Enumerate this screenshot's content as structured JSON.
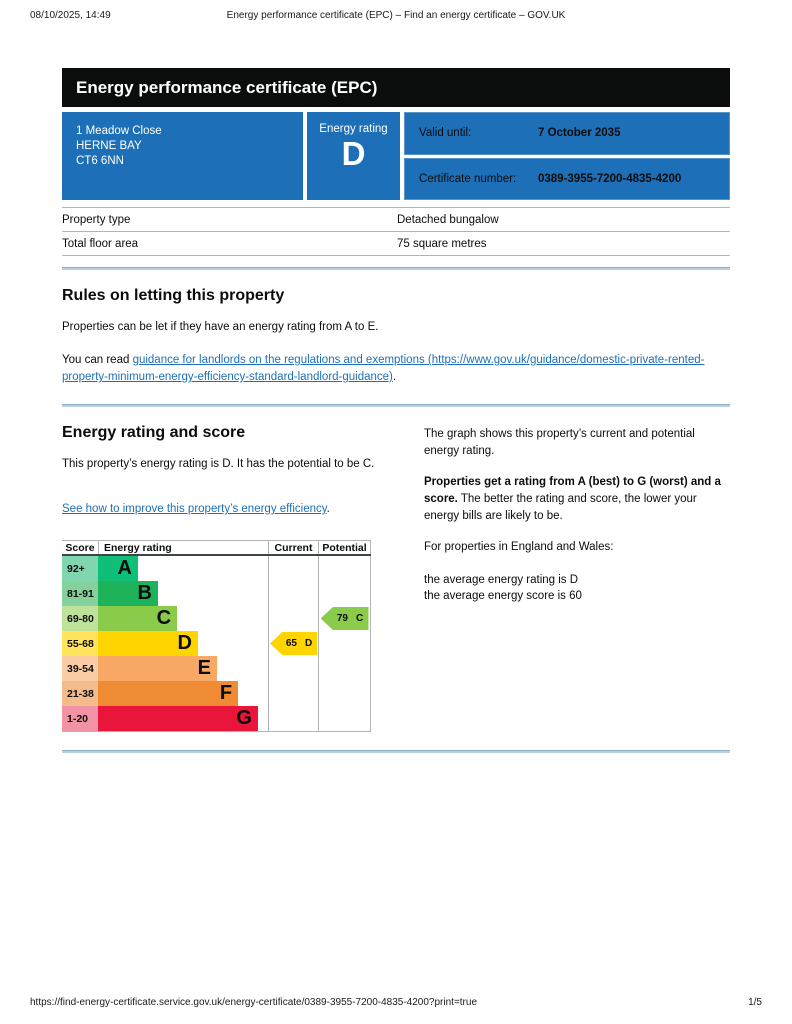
{
  "colors": {
    "govuk_blue": "#1d70b8",
    "banner_black": "#0b0c0c",
    "link_blue": "#1d70b8",
    "divider_blue": "#b9cfdf"
  },
  "print_header": {
    "datetime": "08/10/2025, 14:49",
    "title": "Energy performance certificate (EPC) – Find an energy certificate – GOV.UK"
  },
  "print_footer": {
    "url": "https://find-energy-certificate.service.gov.uk/energy-certificate/0389-3955-7200-4835-4200?print=true",
    "page_indicator": "1/5"
  },
  "banner": {
    "title": "Energy performance certificate (EPC)"
  },
  "summary": {
    "address_lines": [
      "1 Meadow Close",
      "HERNE BAY",
      "CT6 6NN"
    ],
    "energy_rating_label": "Energy rating",
    "energy_rating": "D",
    "valid_until_label": "Valid until:",
    "valid_until": "7 October 2035",
    "certificate_number_label": "Certificate number:",
    "certificate_number": "0389-3955-7200-4835-4200"
  },
  "property_details": {
    "rows": [
      {
        "label": "Property type",
        "value": "Detached bungalow"
      },
      {
        "label": "Total floor area",
        "value": "75 square metres"
      }
    ]
  },
  "letting_rules": {
    "heading": "Rules on letting this property",
    "paragraph1": "Properties can be let if they have an energy rating from A to E.",
    "paragraph2_prefix": "You can read ",
    "link_text": "guidance for landlords on the regulations and exemptions (https://www.gov.uk/guidance/domestic-private-rented-property-minimum-energy-efficiency-standard-landlord-guidance)",
    "paragraph2_suffix": "."
  },
  "rating_section": {
    "heading": "Energy rating and score",
    "paragraph1": "This property’s energy rating is D. It has the potential to be C.",
    "improve_link_text": "See how to improve this property’s energy efficiency",
    "improve_link_suffix": ".",
    "right": {
      "paragraph1": "The graph shows this property’s current and potential energy rating.",
      "paragraph2_bold": "Properties get a rating from A (best) to G (worst) and a score.",
      "paragraph2_rest": " The better the rating and score, the lower your energy bills are likely to be.",
      "paragraph3": "For properties in England and Wales:",
      "average_rating_line": "the average energy rating is D",
      "average_score_line": "the average energy score is 60"
    }
  },
  "chart_data": {
    "type": "bar",
    "title": "EPC energy rating bands with current and potential scores",
    "headers": {
      "score": "Score",
      "rating": "Energy rating",
      "current": "Current",
      "potential": "Potential"
    },
    "bands": [
      {
        "score_range": "92+",
        "letter": "A",
        "color": "#0fbe77",
        "tint": "#7fd6af",
        "width_pct": 23.5
      },
      {
        "score_range": "81-91",
        "letter": "B",
        "color": "#1eb25a",
        "tint": "#84d19c",
        "width_pct": 35.3
      },
      {
        "score_range": "69-80",
        "letter": "C",
        "color": "#8bcb4c",
        "tint": "#bfe29b",
        "width_pct": 46.5
      },
      {
        "score_range": "55-68",
        "letter": "D",
        "color": "#ffd500",
        "tint": "#ffe45c",
        "width_pct": 58.8
      },
      {
        "score_range": "39-54",
        "letter": "E",
        "color": "#f8a966",
        "tint": "#fbcda4",
        "width_pct": 70.0
      },
      {
        "score_range": "21-38",
        "letter": "F",
        "color": "#ee8b33",
        "tint": "#f4bc8d",
        "width_pct": 82.4
      },
      {
        "score_range": "1-20",
        "letter": "G",
        "color": "#e9153b",
        "tint": "#f193a5",
        "width_pct": 94.1
      }
    ],
    "current": {
      "score": 65,
      "letter": "D",
      "band_index": 3,
      "color": "#ffd500"
    },
    "potential": {
      "score": 79,
      "letter": "C",
      "band_index": 2,
      "color": "#8bcb4c"
    }
  }
}
